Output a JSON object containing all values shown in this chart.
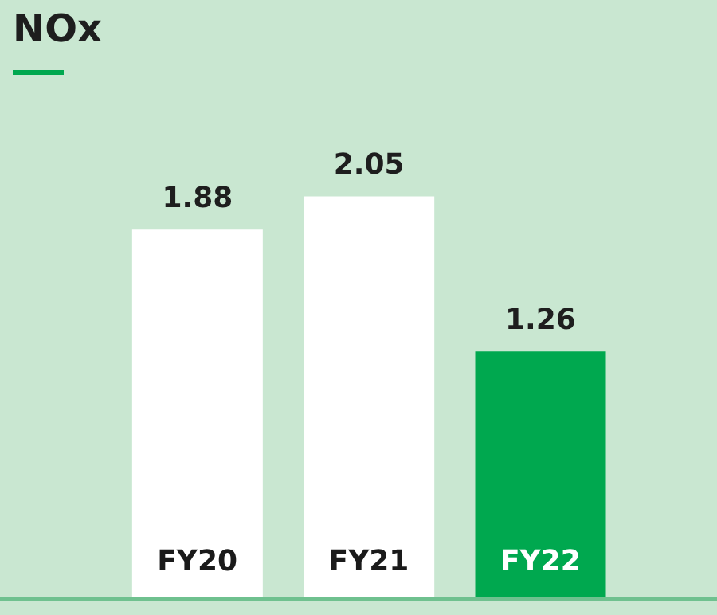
{
  "chart_data": {
    "type": "bar",
    "title": "NOx",
    "categories": [
      "FY20",
      "FY21",
      "FY22"
    ],
    "values": [
      1.88,
      2.05,
      1.26
    ],
    "colors": [
      "#ffffff",
      "#ffffff",
      "#00a84f"
    ],
    "data_labels": true
  }
}
